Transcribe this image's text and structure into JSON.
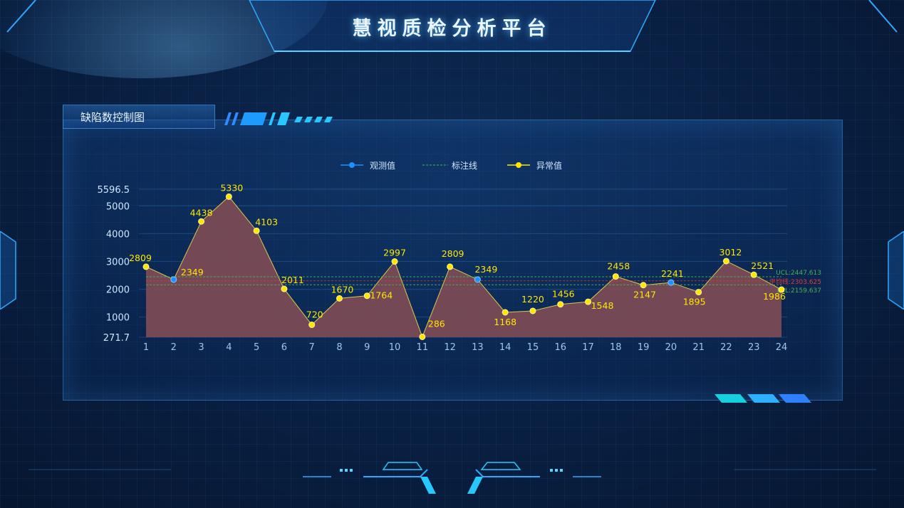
{
  "header": {
    "title": "慧视质检分析平台"
  },
  "panel": {
    "title": "缺陷数控制图"
  },
  "colors": {
    "accent": "#28c8ff",
    "observed": "#1e90ff",
    "anomaly": "#ffe600",
    "area": "#7a4b55",
    "ref_line": "#4caf50",
    "mean_line": "#e53935"
  },
  "chart_data": {
    "type": "line",
    "title": "",
    "xlabel": "",
    "ylabel": "",
    "x": [
      1,
      2,
      3,
      4,
      5,
      6,
      7,
      8,
      9,
      10,
      11,
      12,
      13,
      14,
      15,
      16,
      17,
      18,
      19,
      20,
      21,
      22,
      23,
      24
    ],
    "values": [
      2809,
      2349,
      4438,
      5330,
      4103,
      2011,
      720,
      1670,
      1764,
      2997,
      286,
      2809,
      2349,
      1168,
      1220,
      1456,
      1548,
      2458,
      2147,
      2241,
      1895,
      3012,
      2521,
      1986
    ],
    "point_types": [
      "anomaly",
      "observed",
      "anomaly",
      "anomaly",
      "anomaly",
      "anomaly",
      "anomaly",
      "anomaly",
      "anomaly",
      "anomaly",
      "anomaly",
      "anomaly",
      "observed",
      "anomaly",
      "anomaly",
      "anomaly",
      "anomaly",
      "anomaly",
      "anomaly",
      "observed",
      "anomaly",
      "anomaly",
      "anomaly",
      "anomaly"
    ],
    "ylim": [
      271.7,
      5596.5
    ],
    "y_ticks": [
      "5596.5",
      "5000",
      "4000",
      "3000",
      "2000",
      "1000",
      "271.7"
    ],
    "y_tick_values": [
      5596.5,
      5000,
      4000,
      3000,
      2000,
      1000,
      271.7
    ],
    "legend": [
      {
        "name": "观测值",
        "icon": "dot-line"
      },
      {
        "name": "标注线",
        "icon": "dashed-line"
      },
      {
        "name": "异常值",
        "icon": "dot-line"
      }
    ],
    "legend_position": "top-center",
    "reference_lines": [
      {
        "label": "UCL:2447.613",
        "value": 2447.613
      },
      {
        "label": "平均线:2303.625",
        "value": 2303.625
      },
      {
        "label": "LCL:2159.637",
        "value": 2159.637
      }
    ],
    "grid": true
  }
}
